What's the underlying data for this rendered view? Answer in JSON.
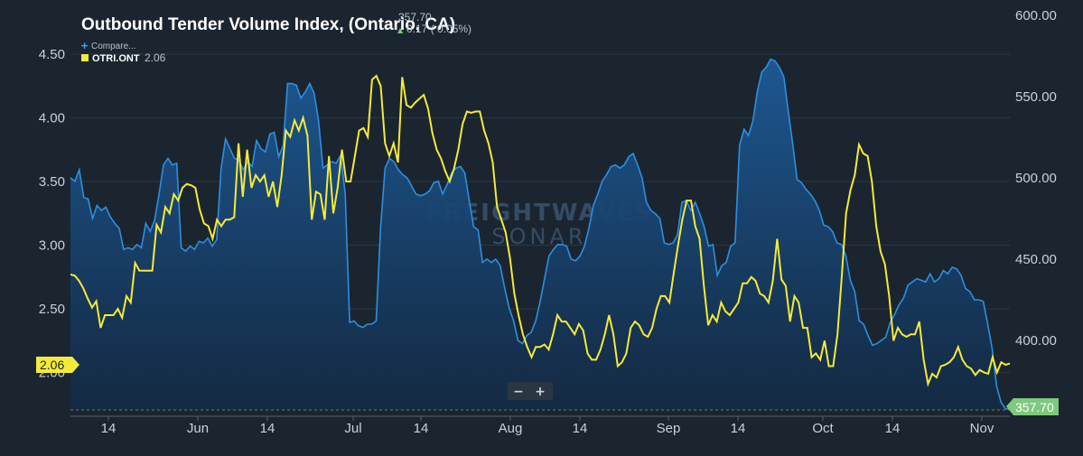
{
  "chart_data": {
    "type": "line",
    "title": "Outbound Tender Volume Index, (Ontario, CA)",
    "header_value": "357.70",
    "header_change": "0.17 ( 0.05%)",
    "compare_label": "Compare...",
    "secondary_series_label": "OTRI.ONT",
    "secondary_series_value": "2.06",
    "left_badge": "2.06",
    "right_badge": "357.70",
    "watermark_line1": "FREIGHTWAVES",
    "watermark_line2": "SONAR",
    "zoom_minus": "−",
    "zoom_plus": "+",
    "x_tick_labels": [
      "14",
      "Jun",
      "14",
      "Jul",
      "14",
      "Aug",
      "14",
      "Sep",
      "14",
      "Oct",
      "14",
      "Nov"
    ],
    "left_axis": {
      "ticks": [
        "4.50",
        "4.00",
        "3.50",
        "3.00",
        "2.50",
        "2.00"
      ],
      "ylim": [
        2.0,
        4.5
      ]
    },
    "right_axis": {
      "ticks": [
        "600.00",
        "550.00",
        "500.00",
        "450.00",
        "400.00"
      ],
      "ylim": [
        357.7,
        600
      ]
    },
    "colors": {
      "otvi": "#2d8fe0",
      "otri": "#f4ea3a",
      "background": "#1b2530",
      "badge_right": "#7dc97d",
      "badge_left": "#f4ea3a"
    },
    "series": [
      {
        "name": "Outbound Tender Volume Index, (Ontario, CA)",
        "axis": "right",
        "values": [
          500,
          498,
          505,
          488,
          487,
          475,
          483,
          480,
          482,
          476,
          472,
          469,
          456,
          457,
          456,
          459,
          457,
          472,
          467,
          474,
          490,
          508,
          512,
          508,
          509,
          457,
          455,
          458,
          456,
          461,
          460,
          463,
          458,
          462,
          506,
          524,
          518,
          512,
          511,
          505,
          510,
          507,
          523,
          518,
          516,
          527,
          528,
          513,
          520,
          558,
          558,
          557,
          549,
          553,
          558,
          552,
          535,
          506,
          508,
          510,
          509,
          514,
          490,
          411,
          412,
          409,
          408,
          410,
          410,
          412,
          470,
          506,
          512,
          510,
          505,
          502,
          500,
          495,
          490,
          489,
          490,
          492,
          497,
          498,
          490,
          496,
          503,
          506,
          507,
          503,
          486,
          470,
          468,
          448,
          450,
          448,
          450,
          446,
          432,
          420,
          412,
          400,
          398,
          403,
          405,
          412,
          424,
          438,
          452,
          456,
          459,
          459,
          458,
          450,
          449,
          452,
          458,
          469,
          483,
          490,
          498,
          502,
          507,
          508,
          506,
          508,
          513,
          515,
          508,
          500,
          485,
          480,
          478,
          475,
          460,
          459,
          460,
          465,
          485,
          486,
          480,
          485,
          478,
          470,
          458,
          459,
          440,
          446,
          448,
          458,
          460,
          520,
          530,
          526,
          535,
          553,
          565,
          568,
          573,
          572,
          568,
          562,
          541,
          521,
          499,
          497,
          493,
          490,
          486,
          480,
          471,
          470,
          467,
          460,
          459,
          452,
          437,
          430,
          412,
          410,
          403,
          397,
          398,
          400,
          402,
          411,
          416,
          422,
          426,
          434,
          436,
          438,
          437,
          436,
          441,
          436,
          438,
          443,
          441,
          445,
          444,
          440,
          432,
          430,
          425,
          425,
          424,
          410,
          395,
          372,
          362,
          358,
          357.7
        ]
      },
      {
        "name": "OTRI.ONT",
        "axis": "left",
        "values": [
          2.77,
          2.76,
          2.72,
          2.66,
          2.58,
          2.51,
          2.56,
          2.35,
          2.45,
          2.45,
          2.45,
          2.5,
          2.43,
          2.6,
          2.55,
          2.86,
          2.8,
          2.8,
          2.8,
          2.8,
          3.16,
          3.1,
          3.3,
          3.25,
          3.4,
          3.35,
          3.45,
          3.48,
          3.47,
          3.45,
          3.28,
          3.17,
          3.15,
          3.05,
          3.2,
          3.15,
          3.2,
          3.2,
          3.22,
          3.8,
          3.38,
          3.75,
          3.45,
          3.55,
          3.5,
          3.55,
          3.38,
          3.5,
          3.3,
          3.55,
          3.9,
          3.85,
          3.98,
          3.9,
          4.0,
          3.86,
          3.2,
          3.42,
          3.4,
          3.2,
          3.7,
          3.25,
          3.45,
          3.75,
          3.5,
          3.5,
          3.7,
          3.9,
          3.92,
          3.85,
          4.3,
          4.33,
          4.25,
          3.8,
          3.7,
          3.8,
          3.65,
          4.32,
          4.1,
          4.08,
          4.12,
          4.15,
          4.18,
          4.07,
          3.88,
          3.75,
          3.68,
          3.58,
          3.5,
          3.6,
          3.75,
          3.95,
          4.05,
          4.04,
          4.05,
          4.05,
          3.9,
          3.8,
          3.65,
          3.3,
          3.2,
          3.1,
          2.9,
          2.62,
          2.45,
          2.3,
          2.2,
          2.12,
          2.2,
          2.2,
          2.22,
          2.18,
          2.3,
          2.45,
          2.4,
          2.4,
          2.35,
          2.3,
          2.38,
          2.33,
          2.15,
          2.1,
          2.1,
          2.18,
          2.3,
          2.45,
          2.3,
          2.05,
          2.08,
          2.15,
          2.35,
          2.4,
          2.37,
          2.3,
          2.28,
          2.35,
          2.5,
          2.6,
          2.6,
          2.55,
          2.78,
          3.0,
          3.2,
          3.35,
          3.35,
          3.15,
          3.05,
          2.68,
          2.37,
          2.45,
          2.4,
          2.55,
          2.48,
          2.45,
          2.5,
          2.55,
          2.7,
          2.7,
          2.75,
          2.72,
          2.62,
          2.6,
          2.55,
          2.72,
          3.05,
          2.73,
          2.68,
          2.4,
          2.6,
          2.55,
          2.35,
          2.35,
          2.12,
          2.15,
          2.1,
          2.25,
          2.05,
          2.05,
          2.3,
          2.75,
          3.25,
          3.43,
          3.55,
          3.79,
          3.72,
          3.7,
          3.5,
          3.15,
          2.95,
          2.85,
          2.6,
          2.25,
          2.35,
          2.3,
          2.28,
          2.3,
          2.3,
          2.4,
          2.1,
          1.91,
          1.99,
          1.96,
          2.05,
          2.06,
          2.08,
          2.12,
          2.2,
          2.1,
          2.05,
          2.03,
          1.98,
          2.02,
          2.0,
          1.99,
          2.12,
          2.0,
          2.08,
          2.06,
          2.07
        ]
      }
    ],
    "grid": true,
    "legend": "top-left"
  }
}
